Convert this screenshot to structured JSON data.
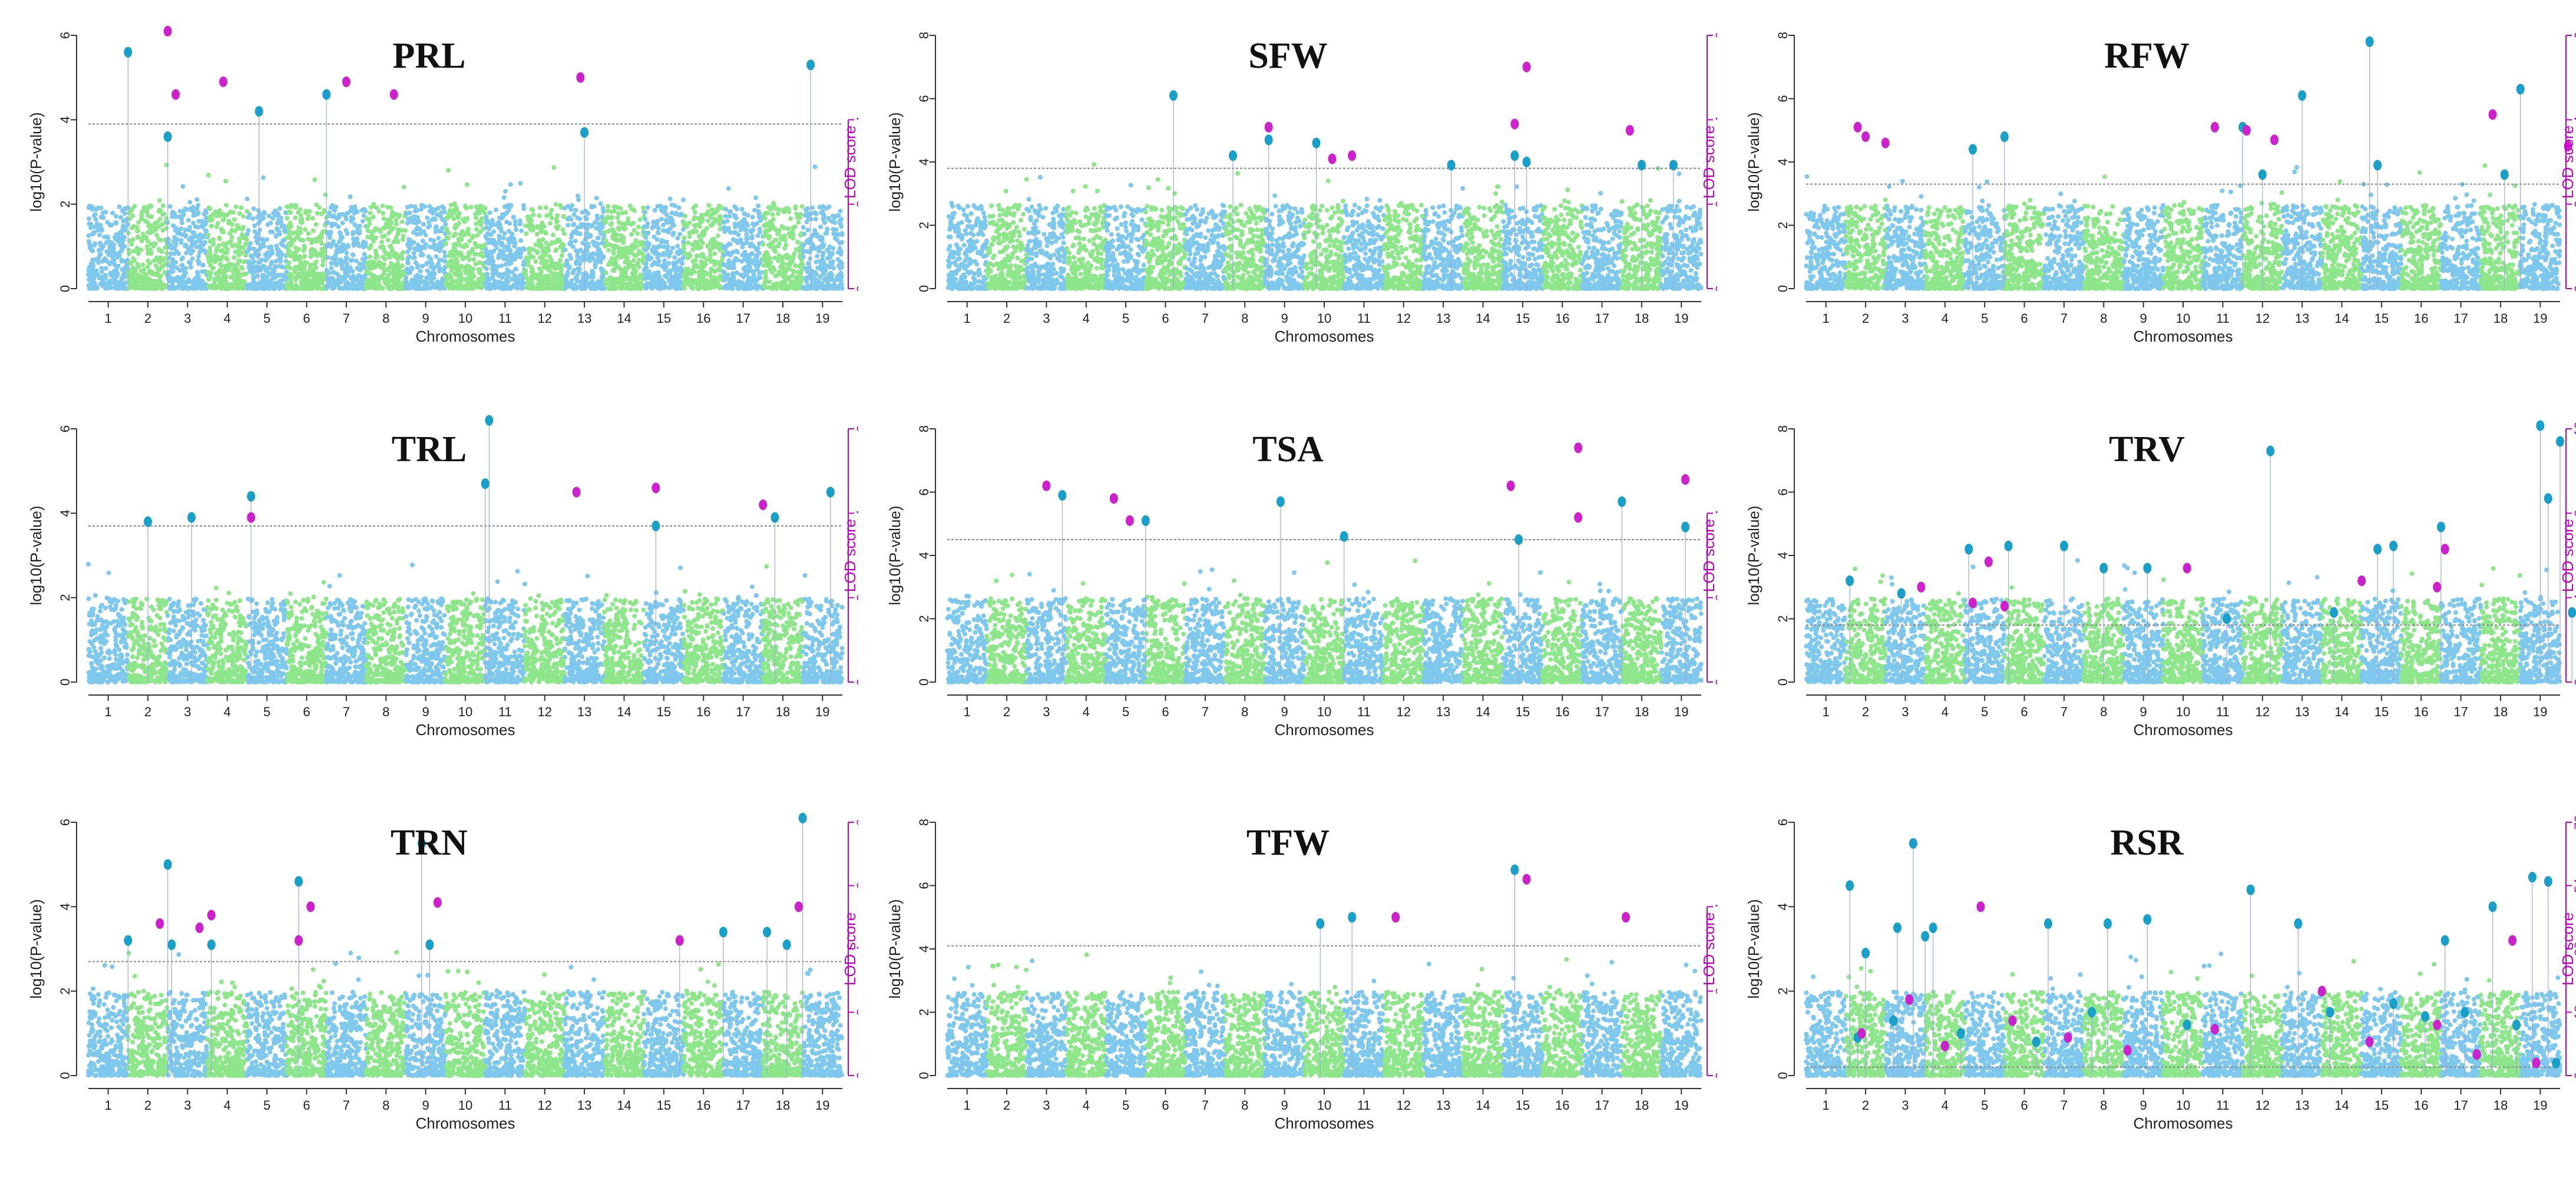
{
  "figure": {
    "xlabel": "Chromosomes",
    "ylabel": "log10(P-value)",
    "ylabel_right": "LOD score",
    "chromosomes": [
      "1",
      "2",
      "3",
      "4",
      "5",
      "6",
      "7",
      "8",
      "9",
      "10",
      "11",
      "12",
      "13",
      "14",
      "15",
      "16",
      "17",
      "18",
      "19"
    ],
    "colors": {
      "odd": "#7ec8ee",
      "even": "#8ee68a",
      "gwas_peak": "#1aa0c8",
      "lod_peak": "#cc22cc",
      "threshold": "#888888",
      "lod_axis": "#c000c0"
    }
  },
  "chart_data": [
    {
      "type": "scatter",
      "title": "PRL",
      "ylim": [
        0,
        6
      ],
      "yticks": [
        0,
        2,
        4,
        6
      ],
      "lod_ylim": [
        0,
        6
      ],
      "lod_ticks": [
        0,
        2,
        4
      ],
      "threshold": 3.9,
      "gwas_peaks": [
        [
          1,
          5.6
        ],
        [
          2,
          3.6
        ],
        [
          4.3,
          4.2
        ],
        [
          6,
          4.6
        ],
        [
          12.5,
          3.7
        ],
        [
          18.2,
          5.3
        ]
      ],
      "lod_peaks": [
        [
          2,
          6.1
        ],
        [
          2.2,
          4.6
        ],
        [
          3.4,
          4.9
        ],
        [
          6.5,
          4.9
        ],
        [
          7.7,
          4.6
        ],
        [
          12.4,
          5.0
        ]
      ]
    },
    {
      "type": "scatter",
      "title": "SFW",
      "ylim": [
        0,
        8
      ],
      "yticks": [
        0,
        2,
        4,
        6,
        8
      ],
      "lod_ylim": [
        0,
        6
      ],
      "lod_ticks": [
        0,
        2,
        4,
        6
      ],
      "threshold": 3.8,
      "gwas_peaks": [
        [
          5.7,
          6.1
        ],
        [
          7.2,
          4.2
        ],
        [
          8.1,
          4.7
        ],
        [
          9.3,
          4.6
        ],
        [
          12.7,
          3.9
        ],
        [
          14.3,
          4.2
        ],
        [
          14.6,
          4.0
        ],
        [
          17.5,
          3.9
        ],
        [
          18.3,
          3.9
        ]
      ],
      "lod_peaks": [
        [
          8.1,
          5.1
        ],
        [
          9.7,
          4.1
        ],
        [
          10.2,
          4.2
        ],
        [
          14.3,
          5.2
        ],
        [
          14.6,
          7.0
        ],
        [
          17.2,
          5.0
        ]
      ]
    },
    {
      "type": "scatter",
      "title": "RFW",
      "ylim": [
        0,
        8
      ],
      "yticks": [
        0,
        2,
        4,
        6,
        8
      ],
      "lod_ylim": [
        0,
        6
      ],
      "lod_ticks": [
        0,
        2,
        4,
        6
      ],
      "threshold": 3.3,
      "gwas_peaks": [
        [
          4.2,
          4.4
        ],
        [
          5,
          4.8
        ],
        [
          11,
          5.1
        ],
        [
          11.5,
          3.6
        ],
        [
          12.5,
          6.1
        ],
        [
          14.2,
          7.8
        ],
        [
          14.4,
          3.9
        ],
        [
          17.6,
          3.6
        ],
        [
          18,
          6.3
        ]
      ],
      "lod_peaks": [
        [
          1.3,
          5.1
        ],
        [
          1.5,
          4.8
        ],
        [
          2,
          4.6
        ],
        [
          10.3,
          5.1
        ],
        [
          11.1,
          5.0
        ],
        [
          11.8,
          4.7
        ],
        [
          17.3,
          5.5
        ],
        [
          19.2,
          4.5
        ]
      ]
    },
    {
      "type": "scatter",
      "title": "TRL",
      "ylim": [
        0,
        6
      ],
      "yticks": [
        0,
        2,
        4,
        6
      ],
      "lod_ylim": [
        0,
        6
      ],
      "lod_ticks": [
        0,
        2,
        4,
        6
      ],
      "threshold": 3.7,
      "gwas_peaks": [
        [
          1.5,
          3.8
        ],
        [
          2.6,
          3.9
        ],
        [
          4.1,
          4.4
        ],
        [
          10.1,
          6.2
        ],
        [
          10,
          4.7
        ],
        [
          14.3,
          3.7
        ],
        [
          17.3,
          3.9
        ],
        [
          18.7,
          4.5
        ]
      ],
      "lod_peaks": [
        [
          4.1,
          3.9
        ],
        [
          12.3,
          4.5
        ],
        [
          14.3,
          4.6
        ],
        [
          17,
          4.2
        ]
      ]
    },
    {
      "type": "scatter",
      "title": "TSA",
      "ylim": [
        0,
        8
      ],
      "yticks": [
        0,
        2,
        4,
        6,
        8
      ],
      "lod_ylim": [
        0,
        6
      ],
      "lod_ticks": [
        0,
        2,
        4
      ],
      "threshold": 4.5,
      "gwas_peaks": [
        [
          2.9,
          5.9
        ],
        [
          5,
          5.1
        ],
        [
          8.4,
          5.7
        ],
        [
          10,
          4.6
        ],
        [
          14.4,
          4.5
        ],
        [
          17,
          5.7
        ],
        [
          18.6,
          4.9
        ]
      ],
      "lod_peaks": [
        [
          2.5,
          6.2
        ],
        [
          4.2,
          5.8
        ],
        [
          4.6,
          5.1
        ],
        [
          14.2,
          6.2
        ],
        [
          15.9,
          5.2
        ],
        [
          15.9,
          7.4
        ],
        [
          18.6,
          6.4
        ]
      ]
    },
    {
      "type": "scatter",
      "title": "TRV",
      "ylim": [
        0,
        8
      ],
      "yticks": [
        0,
        2,
        4,
        6,
        8
      ],
      "lod_ylim": [
        0,
        12
      ],
      "lod_ticks": [
        0,
        4,
        8,
        12
      ],
      "threshold": 1.8,
      "gwas_peaks": [
        [
          1.1,
          3.2
        ],
        [
          2.4,
          2.8
        ],
        [
          4.1,
          4.2
        ],
        [
          5.1,
          4.3
        ],
        [
          6.5,
          4.3
        ],
        [
          7.5,
          3.6
        ],
        [
          8.6,
          3.6
        ],
        [
          10.6,
          2.0
        ],
        [
          11.7,
          7.3
        ],
        [
          13.3,
          2.2
        ],
        [
          14.4,
          4.2
        ],
        [
          14.8,
          4.3
        ],
        [
          16,
          4.9
        ],
        [
          18.5,
          8.1
        ],
        [
          18.7,
          5.8
        ],
        [
          19,
          7.6
        ],
        [
          19.3,
          2.2
        ]
      ],
      "lod_peaks": [
        [
          2.9,
          3.0
        ],
        [
          4.2,
          2.5
        ],
        [
          4.6,
          3.8
        ],
        [
          5,
          2.4
        ],
        [
          9.6,
          3.6
        ],
        [
          14,
          3.2
        ],
        [
          15.9,
          3.0
        ],
        [
          16.1,
          4.2
        ]
      ]
    },
    {
      "type": "scatter",
      "title": "TRN",
      "ylim": [
        0,
        6
      ],
      "yticks": [
        0,
        2,
        4,
        6
      ],
      "lod_ylim": [
        0,
        8
      ],
      "lod_ticks": [
        0,
        2,
        4,
        6,
        8
      ],
      "threshold": 2.7,
      "gwas_peaks": [
        [
          1,
          3.2
        ],
        [
          2,
          5.0
        ],
        [
          2.1,
          3.1
        ],
        [
          3.1,
          3.1
        ],
        [
          5.3,
          4.6
        ],
        [
          8.4,
          5.5
        ],
        [
          8.6,
          3.1
        ],
        [
          14.9,
          3.2
        ],
        [
          16,
          3.4
        ],
        [
          17.1,
          3.4
        ],
        [
          17.6,
          3.1
        ],
        [
          18,
          6.1
        ]
      ],
      "lod_peaks": [
        [
          1.8,
          3.6
        ],
        [
          2.8,
          3.5
        ],
        [
          3.1,
          3.8
        ],
        [
          5.3,
          3.2
        ],
        [
          5.6,
          4.0
        ],
        [
          8.8,
          4.1
        ],
        [
          14.9,
          3.2
        ],
        [
          17.9,
          4.0
        ]
      ]
    },
    {
      "type": "scatter",
      "title": "TFW",
      "ylim": [
        0,
        8
      ],
      "yticks": [
        0,
        2,
        4,
        6,
        8
      ],
      "lod_ylim": [
        0,
        6
      ],
      "lod_ticks": [
        0,
        2,
        4
      ],
      "threshold": 4.1,
      "gwas_peaks": [
        [
          9.4,
          4.8
        ],
        [
          10.2,
          5.0
        ],
        [
          14.3,
          6.5
        ]
      ],
      "lod_peaks": [
        [
          11.3,
          5.0
        ],
        [
          14.6,
          6.2
        ],
        [
          17.1,
          5.0
        ]
      ]
    },
    {
      "type": "scatter",
      "title": "RSR",
      "ylim": [
        0,
        6
      ],
      "yticks": [
        0,
        2,
        4,
        6
      ],
      "lod_ylim": [
        0,
        72
      ],
      "lod_ticks": [
        0,
        18,
        36,
        54,
        72
      ],
      "threshold": 0.2,
      "gwas_peaks": [
        [
          1.1,
          4.5
        ],
        [
          1.5,
          2.9
        ],
        [
          2.3,
          3.5
        ],
        [
          2.7,
          5.5
        ],
        [
          3,
          3.3
        ],
        [
          3.2,
          3.5
        ],
        [
          6.1,
          3.6
        ],
        [
          7.6,
          3.6
        ],
        [
          8.6,
          3.7
        ],
        [
          11.2,
          4.4
        ],
        [
          12.4,
          3.6
        ],
        [
          16.1,
          3.2
        ],
        [
          17.3,
          4.0
        ],
        [
          18.3,
          4.7
        ],
        [
          18.7,
          4.6
        ],
        [
          1.3,
          0.9
        ],
        [
          2.2,
          1.3
        ],
        [
          3.9,
          1.0
        ],
        [
          5.8,
          0.8
        ],
        [
          7.2,
          1.5
        ],
        [
          9.6,
          1.2
        ],
        [
          13.2,
          1.5
        ],
        [
          14.8,
          1.7
        ],
        [
          15.6,
          1.4
        ],
        [
          16.6,
          1.5
        ],
        [
          17.9,
          1.2
        ],
        [
          18.9,
          0.3
        ]
      ],
      "lod_peaks": [
        [
          4.4,
          4.0
        ],
        [
          17.8,
          3.2
        ],
        [
          1.4,
          1.0
        ],
        [
          2.6,
          1.8
        ],
        [
          3.5,
          0.7
        ],
        [
          5.2,
          1.3
        ],
        [
          6.6,
          0.9
        ],
        [
          8.1,
          0.6
        ],
        [
          10.3,
          1.1
        ],
        [
          13,
          2.0
        ],
        [
          14.2,
          0.8
        ],
        [
          15.9,
          1.2
        ],
        [
          16.9,
          0.5
        ],
        [
          18.4,
          0.3
        ]
      ]
    }
  ]
}
